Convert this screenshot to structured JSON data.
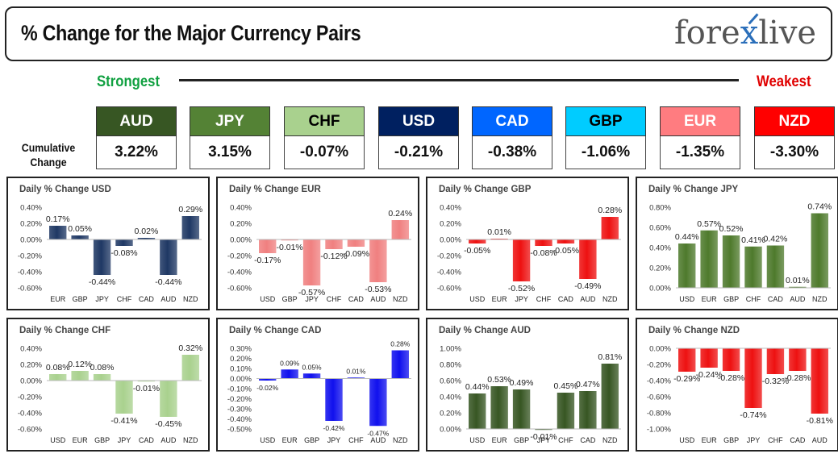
{
  "header": {
    "title": "% Change for the Major Currency Pairs",
    "logo_text": "forexlive"
  },
  "strength": {
    "strongest_label": "Strongest",
    "weakest_label": "Weakest",
    "cumulative_label_1": "Cumulative",
    "cumulative_label_2": "Change"
  },
  "ranking": [
    {
      "code": "AUD",
      "value": "3.22%",
      "bg": "#375623",
      "fg": "#ffffff"
    },
    {
      "code": "JPY",
      "value": "3.15%",
      "bg": "#548235",
      "fg": "#ffffff"
    },
    {
      "code": "CHF",
      "value": "-0.07%",
      "bg": "#a9d18e",
      "fg": "#000000"
    },
    {
      "code": "USD",
      "value": "-0.21%",
      "bg": "#002060",
      "fg": "#ffffff"
    },
    {
      "code": "CAD",
      "value": "-0.38%",
      "bg": "#0066ff",
      "fg": "#ffffff"
    },
    {
      "code": "GBP",
      "value": "-1.06%",
      "bg": "#00ccff",
      "fg": "#000000"
    },
    {
      "code": "EUR",
      "value": "-1.35%",
      "bg": "#ff7c80",
      "fg": "#ffffff"
    },
    {
      "code": "NZD",
      "value": "-3.30%",
      "bg": "#ff0000",
      "fg": "#ffffff"
    }
  ],
  "chart_data": [
    {
      "type": "bar",
      "title": "Daily % Change USD",
      "categories": [
        "EUR",
        "GBP",
        "JPY",
        "CHF",
        "CAD",
        "AUD",
        "NZD"
      ],
      "values": [
        0.17,
        0.05,
        -0.44,
        -0.08,
        0.02,
        -0.44,
        0.29
      ],
      "labels": [
        "0.17%",
        "0.05%",
        "-0.44%",
        "-0.08%",
        "0.02%",
        "-0.44%",
        "0.29%"
      ],
      "ylim": [
        -0.6,
        0.4
      ],
      "ticks": [
        0.4,
        0.2,
        0,
        -0.2,
        -0.4,
        -0.6
      ],
      "tick_labels": [
        "0.40%",
        "0.20%",
        "0.00%",
        "-0.20%",
        "-0.40%",
        "-0.60%"
      ],
      "color": "#1f3864"
    },
    {
      "type": "bar",
      "title": "Daily % Change EUR",
      "categories": [
        "USD",
        "GBP",
        "JPY",
        "CHF",
        "CAD",
        "AUD",
        "NZD"
      ],
      "values": [
        -0.17,
        -0.01,
        -0.57,
        -0.12,
        -0.09,
        -0.53,
        0.24
      ],
      "labels": [
        "-0.17%",
        "-0.01%",
        "-0.57%",
        "-0.12%",
        "-0.09%",
        "-0.53%",
        "0.24%"
      ],
      "ylim": [
        -0.6,
        0.4
      ],
      "ticks": [
        0.4,
        0.2,
        0,
        -0.2,
        -0.4,
        -0.6
      ],
      "tick_labels": [
        "0.40%",
        "0.20%",
        "0.00%",
        "-0.20%",
        "-0.40%",
        "-0.60%"
      ],
      "color": "#f08080"
    },
    {
      "type": "bar",
      "title": "Daily % Change GBP",
      "categories": [
        "USD",
        "EUR",
        "JPY",
        "CHF",
        "CAD",
        "AUD",
        "NZD"
      ],
      "values": [
        -0.05,
        0.01,
        -0.52,
        -0.08,
        -0.05,
        -0.49,
        0.28
      ],
      "labels": [
        "-0.05%",
        "0.01%",
        "-0.52%",
        "-0.08%",
        "-0.05%",
        "-0.49%",
        "0.28%"
      ],
      "ylim": [
        -0.6,
        0.4
      ],
      "ticks": [
        0.4,
        0.2,
        0,
        -0.2,
        -0.4,
        -0.6
      ],
      "tick_labels": [
        "0.40%",
        "0.20%",
        "0.00%",
        "-0.20%",
        "-0.40%",
        "-0.60%"
      ],
      "color": "#ee1111"
    },
    {
      "type": "bar",
      "title": "Daily % Change JPY",
      "categories": [
        "USD",
        "EUR",
        "GBP",
        "CHF",
        "CAD",
        "AUD",
        "NZD"
      ],
      "values": [
        0.44,
        0.57,
        0.52,
        0.41,
        0.42,
        0.01,
        0.74
      ],
      "labels": [
        "0.44%",
        "0.57%",
        "0.52%",
        "0.41%",
        "0.42%",
        "0.01%",
        "0.74%"
      ],
      "ylim": [
        0,
        0.8
      ],
      "ticks": [
        0.8,
        0.6,
        0.4,
        0.2,
        0
      ],
      "tick_labels": [
        "0.80%",
        "0.60%",
        "0.40%",
        "0.20%",
        "0.00%"
      ],
      "color": "#4e7a2c"
    },
    {
      "type": "bar",
      "title": "Daily % Change CHF",
      "categories": [
        "USD",
        "EUR",
        "GBP",
        "JPY",
        "CAD",
        "AUD",
        "NZD"
      ],
      "values": [
        0.08,
        0.12,
        0.08,
        -0.41,
        -0.01,
        -0.45,
        0.32
      ],
      "labels": [
        "0.08%",
        "0.12%",
        "0.08%",
        "-0.41%",
        "-0.01%",
        "-0.45%",
        "0.32%"
      ],
      "ylim": [
        -0.6,
        0.4
      ],
      "ticks": [
        0.4,
        0.2,
        0,
        -0.2,
        -0.4,
        -0.6
      ],
      "tick_labels": [
        "0.40%",
        "0.20%",
        "0.00%",
        "-0.20%",
        "-0.40%",
        "-0.60%"
      ],
      "color": "#a9d18e"
    },
    {
      "type": "bar",
      "title": "Daily % Change CAD",
      "categories": [
        "USD",
        "EUR",
        "GBP",
        "JPY",
        "CHF",
        "AUD",
        "NZD"
      ],
      "values": [
        -0.02,
        0.09,
        0.05,
        -0.42,
        0.01,
        -0.47,
        0.28
      ],
      "labels": [
        "-0.02%",
        "0.09%",
        "0.05%",
        "-0.42%",
        "0.01%",
        "-0.47%",
        "0.28%"
      ],
      "ylim": [
        -0.5,
        0.3
      ],
      "ticks": [
        0.3,
        0.2,
        0.1,
        0,
        -0.1,
        -0.2,
        -0.3,
        -0.4,
        -0.5
      ],
      "tick_labels": [
        "0.30%",
        "0.20%",
        "0.10%",
        "0.00%",
        "-0.10%",
        "-0.20%",
        "-0.30%",
        "-0.40%",
        "-0.50%"
      ],
      "color": "#1010ee",
      "small_labels": true
    },
    {
      "type": "bar",
      "title": "Daily % Change AUD",
      "categories": [
        "USD",
        "EUR",
        "GBP",
        "JPY",
        "CHF",
        "CAD",
        "NZD"
      ],
      "values": [
        0.44,
        0.53,
        0.49,
        -0.01,
        0.45,
        0.47,
        0.81
      ],
      "labels": [
        "0.44%",
        "0.53%",
        "0.49%",
        "-0.01%",
        "0.45%",
        "0.47%",
        "0.81%"
      ],
      "ylim": [
        0,
        1.0
      ],
      "ticks": [
        1.0,
        0.8,
        0.6,
        0.4,
        0.2,
        0
      ],
      "tick_labels": [
        "1.00%",
        "0.80%",
        "0.60%",
        "0.40%",
        "0.20%",
        "0.00%"
      ],
      "color": "#375623"
    },
    {
      "type": "bar",
      "title": "Daily % Change NZD",
      "categories": [
        "USD",
        "EUR",
        "GBP",
        "JPY",
        "CHF",
        "CAD",
        "AUD"
      ],
      "values": [
        -0.29,
        -0.24,
        -0.28,
        -0.74,
        -0.32,
        -0.28,
        -0.81
      ],
      "labels": [
        "-0.29%",
        "-0.24%",
        "-0.28%",
        "-0.74%",
        "-0.32%",
        "-0.28%",
        "-0.81%"
      ],
      "ylim": [
        -1.0,
        0
      ],
      "ticks": [
        0,
        -0.2,
        -0.4,
        -0.6,
        -0.8,
        -1.0
      ],
      "tick_labels": [
        "0.00%",
        "-0.20%",
        "-0.40%",
        "-0.60%",
        "-0.80%",
        "-1.00%"
      ],
      "color": "#ee1111",
      "axis_top": true
    }
  ]
}
